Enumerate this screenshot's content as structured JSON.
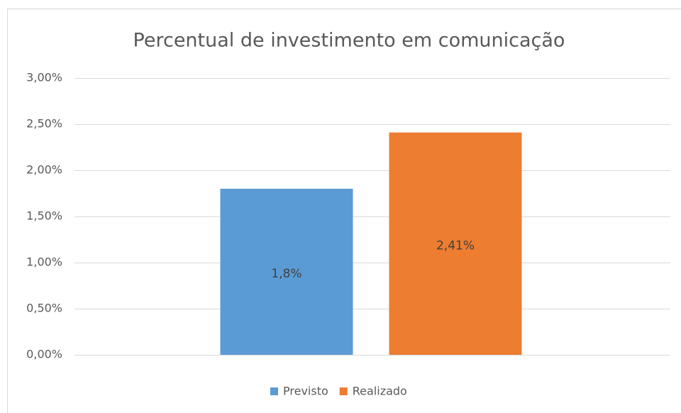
{
  "chart_data": {
    "type": "bar",
    "title": "Percentual de investimento em comunicação",
    "categories": [
      null
    ],
    "series": [
      {
        "name": "Previsto",
        "color": "#5b9bd5",
        "values": [
          1.8
        ],
        "value_labels": [
          "1,8%"
        ]
      },
      {
        "name": "Realizado",
        "color": "#ed7d31",
        "values": [
          2.41
        ],
        "value_labels": [
          "2,41%"
        ]
      }
    ],
    "ylim": [
      0,
      3
    ],
    "yticks": [
      {
        "value": 0,
        "label": "0,00%"
      },
      {
        "value": 0.5,
        "label": "0,50%"
      },
      {
        "value": 1,
        "label": "1,00%"
      },
      {
        "value": 1.5,
        "label": "1,50%"
      },
      {
        "value": 2,
        "label": "2,00%"
      },
      {
        "value": 2.5,
        "label": "2,50%"
      },
      {
        "value": 3,
        "label": "3,00%"
      }
    ],
    "grid": true,
    "legend": "bottom"
  }
}
